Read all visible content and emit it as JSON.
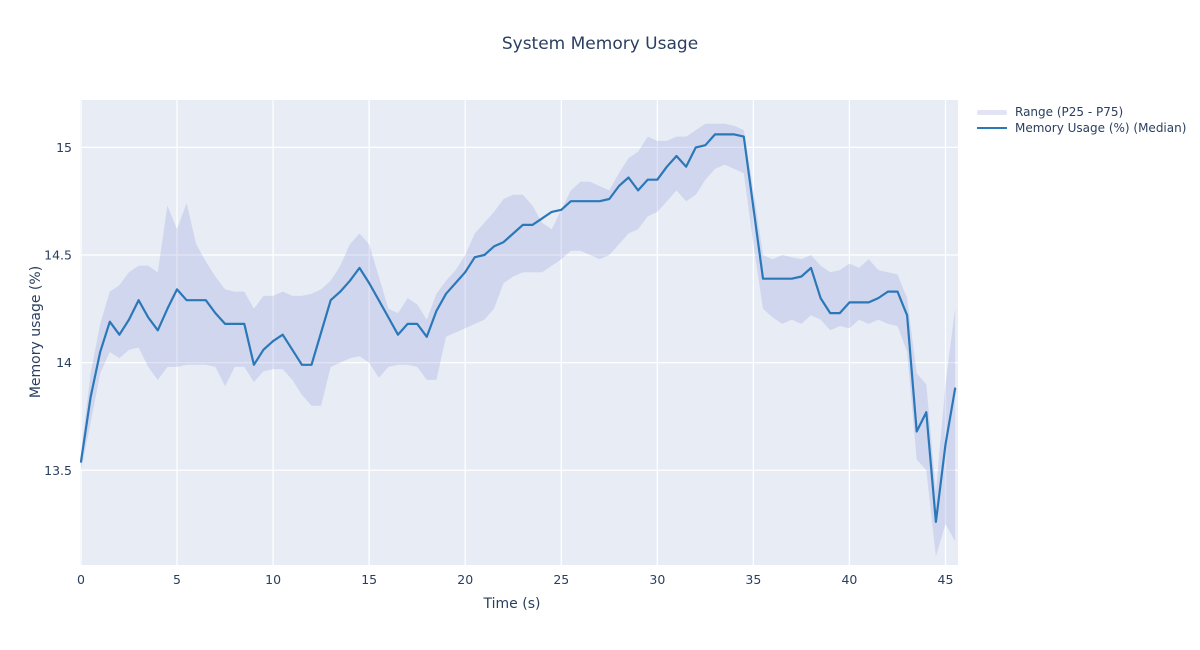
{
  "chart_data": {
    "type": "line",
    "title": "System Memory Usage",
    "xlabel": "Time (s)",
    "ylabel": "Memory usage (%)",
    "legend_position": "outside-top-right",
    "grid": "white gridlines on light blue panel",
    "panel_color": "#e7ecf5",
    "grid_color": "#ffffff",
    "text_color": "#2a3f5f",
    "x_range": [
      -0.05,
      45.65
    ],
    "y_range": [
      13.06,
      15.22
    ],
    "x_ticks": [
      0,
      5,
      10,
      15,
      20,
      25,
      30,
      35,
      40,
      45
    ],
    "x_tick_labels": [
      "0",
      "5",
      "10",
      "15",
      "20",
      "25",
      "30",
      "35",
      "40",
      "45"
    ],
    "y_ticks": [
      13.5,
      14,
      14.5,
      15
    ],
    "y_tick_labels": [
      "13.5",
      "14",
      "14.5",
      "15"
    ],
    "x": [
      0,
      0.5,
      1,
      1.5,
      2,
      2.5,
      3,
      3.5,
      4,
      4.5,
      5,
      5.5,
      6,
      6.5,
      7,
      7.5,
      8,
      8.5,
      9,
      9.5,
      10,
      10.5,
      11,
      11.5,
      12,
      12.5,
      13,
      13.5,
      14,
      14.5,
      15,
      15.5,
      16,
      16.5,
      17,
      17.5,
      18,
      18.5,
      19,
      19.5,
      20,
      20.5,
      21,
      21.5,
      22,
      22.5,
      23,
      23.5,
      24,
      24.5,
      25,
      25.5,
      26,
      26.5,
      27,
      27.5,
      28,
      28.5,
      29,
      29.5,
      30,
      30.5,
      31,
      31.5,
      32,
      32.5,
      33,
      33.5,
      34,
      34.5,
      35,
      35.5,
      36,
      36.5,
      37,
      37.5,
      38,
      38.5,
      39,
      39.5,
      40,
      40.5,
      41,
      41.5,
      42,
      42.5,
      43,
      43.5,
      44,
      44.5,
      45,
      45.5
    ],
    "series": [
      {
        "name": "Range (P25 - P75)",
        "kind": "band",
        "fill_color": "#969edc",
        "fill_opacity": 0.28,
        "p75": [
          13.58,
          13.95,
          14.18,
          14.33,
          14.36,
          14.42,
          14.45,
          14.45,
          14.42,
          14.73,
          14.62,
          14.74,
          14.55,
          14.47,
          14.4,
          14.34,
          14.33,
          14.33,
          14.25,
          14.31,
          14.31,
          14.33,
          14.31,
          14.31,
          14.32,
          14.34,
          14.38,
          14.45,
          14.55,
          14.6,
          14.55,
          14.4,
          14.25,
          14.23,
          14.3,
          14.27,
          14.2,
          14.32,
          14.38,
          14.43,
          14.5,
          14.6,
          14.65,
          14.7,
          14.76,
          14.78,
          14.78,
          14.73,
          14.65,
          14.62,
          14.71,
          14.8,
          14.84,
          14.84,
          14.82,
          14.8,
          14.88,
          14.95,
          14.98,
          15.05,
          15.03,
          15.03,
          15.05,
          15.05,
          15.08,
          15.11,
          15.11,
          15.11,
          15.1,
          15.08,
          14.8,
          14.5,
          14.48,
          14.5,
          14.49,
          14.48,
          14.5,
          14.45,
          14.42,
          14.43,
          14.46,
          14.44,
          14.48,
          14.43,
          14.42,
          14.41,
          14.3,
          13.95,
          13.9,
          13.4,
          13.9,
          14.25
        ],
        "p25": [
          13.5,
          13.72,
          13.95,
          14.05,
          14.02,
          14.06,
          14.07,
          13.98,
          13.92,
          13.98,
          13.98,
          13.99,
          13.99,
          13.99,
          13.98,
          13.89,
          13.98,
          13.98,
          13.91,
          13.96,
          13.97,
          13.97,
          13.92,
          13.85,
          13.8,
          13.8,
          13.98,
          14.0,
          14.02,
          14.03,
          14.0,
          13.93,
          13.98,
          13.99,
          13.99,
          13.98,
          13.92,
          13.92,
          14.12,
          14.14,
          14.16,
          14.18,
          14.2,
          14.25,
          14.37,
          14.4,
          14.42,
          14.42,
          14.42,
          14.45,
          14.48,
          14.52,
          14.52,
          14.5,
          14.48,
          14.5,
          14.55,
          14.6,
          14.62,
          14.68,
          14.7,
          14.75,
          14.8,
          14.75,
          14.78,
          14.85,
          14.9,
          14.92,
          14.9,
          14.88,
          14.55,
          14.25,
          14.21,
          14.18,
          14.2,
          14.18,
          14.22,
          14.2,
          14.15,
          14.17,
          14.16,
          14.2,
          14.18,
          14.2,
          14.18,
          14.17,
          14.05,
          13.55,
          13.5,
          13.1,
          13.25,
          13.17
        ]
      },
      {
        "name": "Memory Usage (%) (Median)",
        "kind": "line",
        "line_color": "#2b78b8",
        "line_width": 2.2,
        "y": [
          13.54,
          13.84,
          14.05,
          14.19,
          14.13,
          14.2,
          14.29,
          14.21,
          14.15,
          14.25,
          14.34,
          14.29,
          14.29,
          14.29,
          14.23,
          14.18,
          14.18,
          14.18,
          13.99,
          14.06,
          14.1,
          14.13,
          14.06,
          13.99,
          13.99,
          14.14,
          14.29,
          14.33,
          14.38,
          14.44,
          14.37,
          14.29,
          14.21,
          14.13,
          14.18,
          14.18,
          14.12,
          14.24,
          14.32,
          14.37,
          14.42,
          14.49,
          14.5,
          14.54,
          14.56,
          14.6,
          14.64,
          14.64,
          14.67,
          14.7,
          14.71,
          14.75,
          14.75,
          14.75,
          14.75,
          14.76,
          14.82,
          14.86,
          14.8,
          14.85,
          14.85,
          14.91,
          14.96,
          14.91,
          15.0,
          15.01,
          15.06,
          15.06,
          15.06,
          15.05,
          14.72,
          14.39,
          14.39,
          14.39,
          14.39,
          14.4,
          14.44,
          14.3,
          14.23,
          14.23,
          14.28,
          14.28,
          14.28,
          14.3,
          14.33,
          14.33,
          14.22,
          13.68,
          13.77,
          13.26,
          13.62,
          13.88
        ]
      }
    ]
  }
}
